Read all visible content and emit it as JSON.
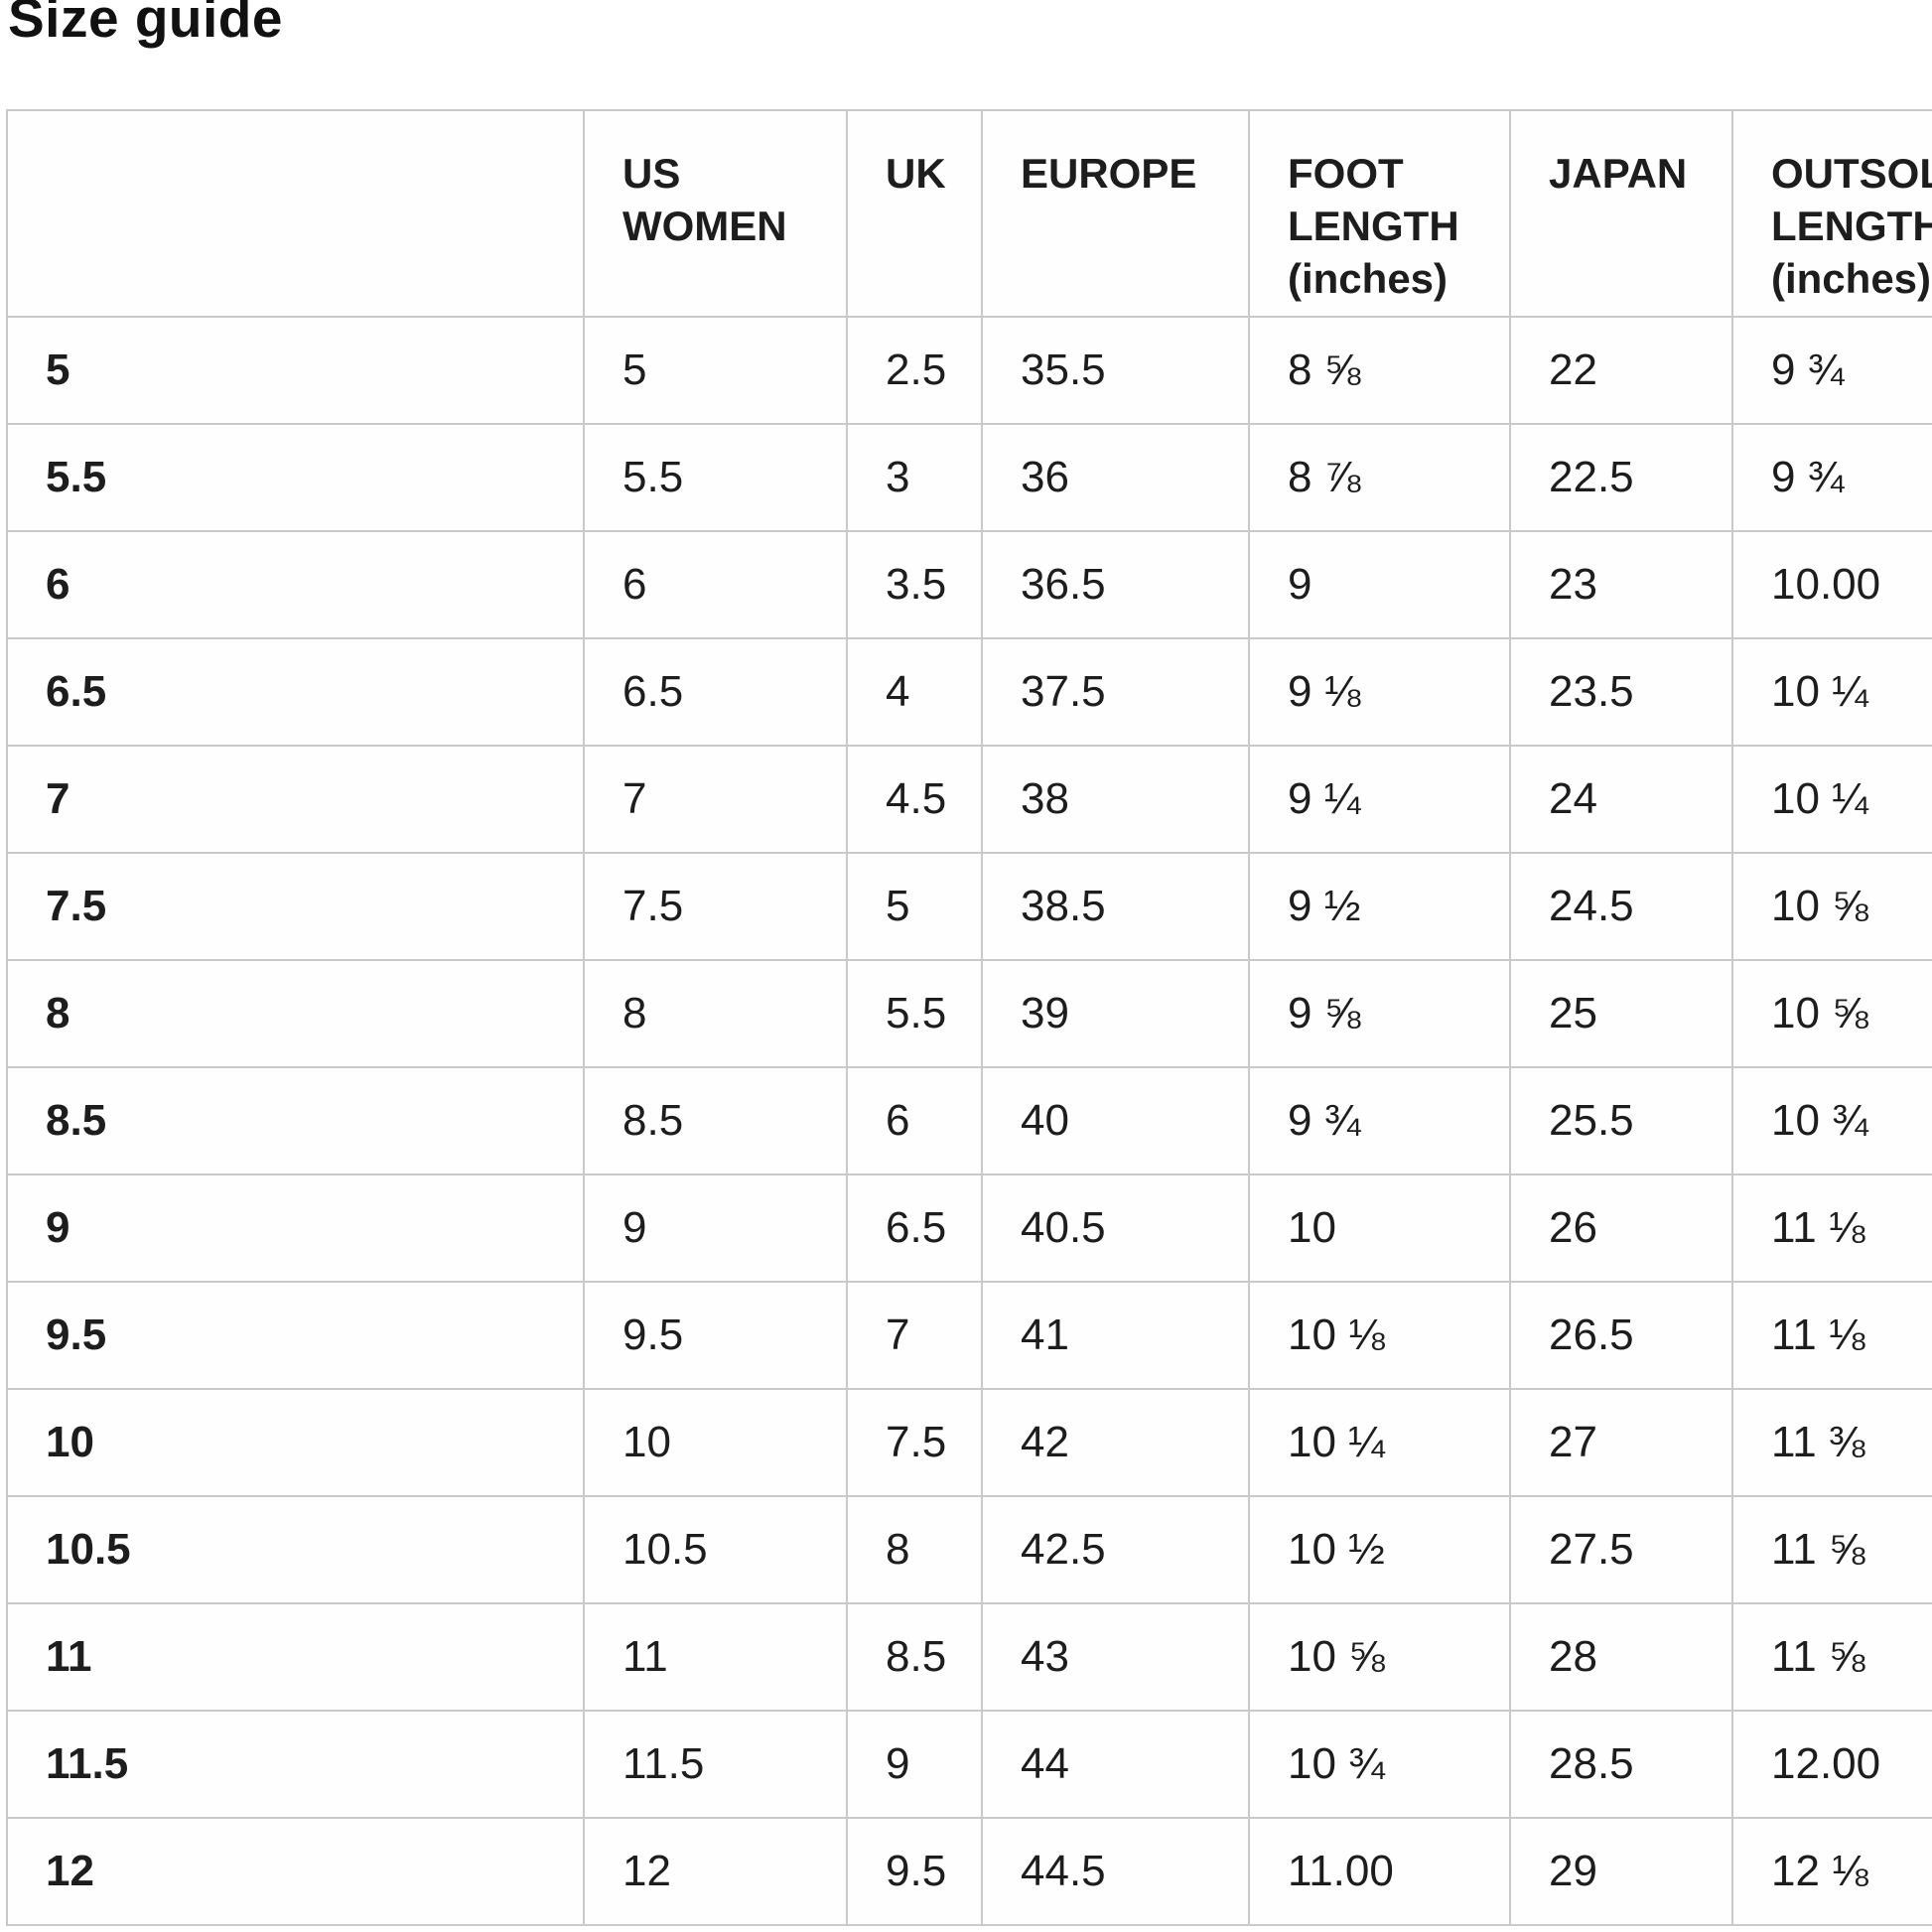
{
  "page": {
    "title": "Size guide"
  },
  "table": {
    "columns": [
      "",
      "US WOMEN",
      "UK",
      "EUROPE",
      "FOOT LENGTH (inches)",
      "JAPAN",
      "OUTSOLE LENGTH (inches)"
    ],
    "column_keys": [
      "size",
      "us_women",
      "uk",
      "europe",
      "foot_length_in",
      "japan",
      "outsole_length_in"
    ],
    "rows": [
      {
        "size": "5",
        "us_women": "5",
        "uk": "2.5",
        "europe": "35.5",
        "foot_length_in": "8 ⅝",
        "japan": "22",
        "outsole_length_in": "9 ¾"
      },
      {
        "size": "5.5",
        "us_women": "5.5",
        "uk": "3",
        "europe": "36",
        "foot_length_in": "8 ⅞",
        "japan": "22.5",
        "outsole_length_in": "9 ¾"
      },
      {
        "size": "6",
        "us_women": "6",
        "uk": "3.5",
        "europe": "36.5",
        "foot_length_in": "9",
        "japan": "23",
        "outsole_length_in": "10.00"
      },
      {
        "size": "6.5",
        "us_women": "6.5",
        "uk": "4",
        "europe": "37.5",
        "foot_length_in": "9 ⅛",
        "japan": "23.5",
        "outsole_length_in": "10 ¼"
      },
      {
        "size": "7",
        "us_women": "7",
        "uk": "4.5",
        "europe": "38",
        "foot_length_in": "9 ¼",
        "japan": "24",
        "outsole_length_in": "10 ¼"
      },
      {
        "size": "7.5",
        "us_women": "7.5",
        "uk": "5",
        "europe": "38.5",
        "foot_length_in": "9 ½",
        "japan": "24.5",
        "outsole_length_in": "10 ⅝"
      },
      {
        "size": "8",
        "us_women": "8",
        "uk": "5.5",
        "europe": "39",
        "foot_length_in": "9 ⅝",
        "japan": "25",
        "outsole_length_in": "10 ⅝"
      },
      {
        "size": "8.5",
        "us_women": "8.5",
        "uk": "6",
        "europe": "40",
        "foot_length_in": "9 ¾",
        "japan": "25.5",
        "outsole_length_in": "10 ¾"
      },
      {
        "size": "9",
        "us_women": "9",
        "uk": "6.5",
        "europe": "40.5",
        "foot_length_in": "10",
        "japan": "26",
        "outsole_length_in": "11 ⅛"
      },
      {
        "size": "9.5",
        "us_women": "9.5",
        "uk": "7",
        "europe": "41",
        "foot_length_in": "10 ⅛",
        "japan": "26.5",
        "outsole_length_in": "11 ⅛"
      },
      {
        "size": "10",
        "us_women": "10",
        "uk": "7.5",
        "europe": "42",
        "foot_length_in": "10 ¼",
        "japan": "27",
        "outsole_length_in": "11 ⅜"
      },
      {
        "size": "10.5",
        "us_women": "10.5",
        "uk": "8",
        "europe": "42.5",
        "foot_length_in": "10 ½",
        "japan": "27.5",
        "outsole_length_in": "11 ⅝"
      },
      {
        "size": "11",
        "us_women": "11",
        "uk": "8.5",
        "europe": "43",
        "foot_length_in": "10 ⅝",
        "japan": "28",
        "outsole_length_in": "11 ⅝"
      },
      {
        "size": "11.5",
        "us_women": "11.5",
        "uk": "9",
        "europe": "44",
        "foot_length_in": "10 ¾",
        "japan": "28.5",
        "outsole_length_in": "12.00"
      },
      {
        "size": "12",
        "us_women": "12",
        "uk": "9.5",
        "europe": "44.5",
        "foot_length_in": "11.00",
        "japan": "29",
        "outsole_length_in": "12 ⅛"
      }
    ]
  }
}
